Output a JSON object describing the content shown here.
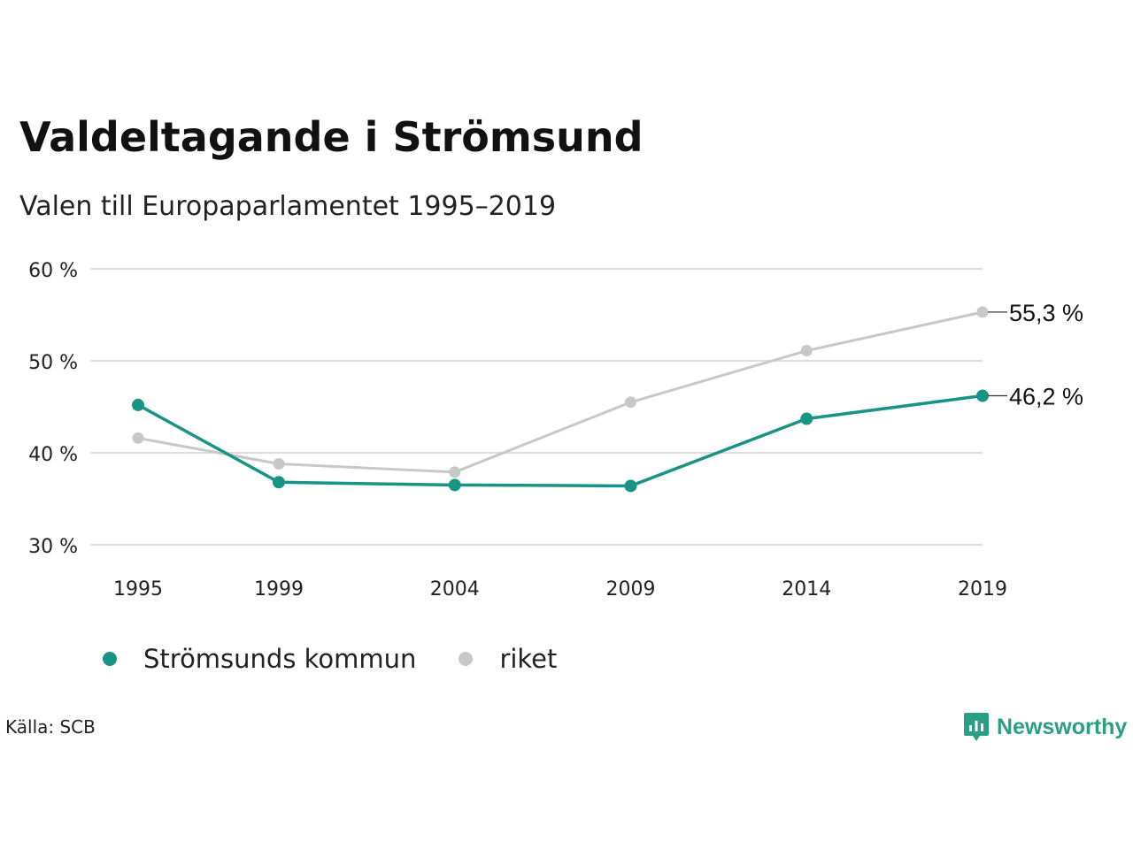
{
  "title": "Valdeltagande i Strömsund",
  "subtitle": "Valen till Europaparlamentet 1995–2019",
  "source": "Källa: SCB",
  "brand": "Newsworthy",
  "colors": {
    "accent": "#179483",
    "secondary": "#c8c8c8",
    "grid": "#dddddd",
    "brand": "#2a9f86"
  },
  "chart_data": {
    "type": "line",
    "categories": [
      "1995",
      "1999",
      "2004",
      "2009",
      "2014",
      "2019"
    ],
    "x": [
      1995,
      1999,
      2004,
      2009,
      2014,
      2019
    ],
    "yticks": [
      30,
      40,
      50,
      60
    ],
    "ytick_labels": [
      "30 %",
      "40 %",
      "50 %",
      "60 %"
    ],
    "ylim": [
      30,
      60
    ],
    "grid": true,
    "legend": "bottom-left",
    "series": [
      {
        "name": "Strömsunds kommun",
        "color": "#179483",
        "values": [
          45.2,
          36.8,
          36.5,
          36.4,
          43.7,
          46.2
        ],
        "end_label": "46,2 %"
      },
      {
        "name": "riket",
        "color": "#c8c8c8",
        "values": [
          41.6,
          38.8,
          37.9,
          45.5,
          51.1,
          55.3
        ],
        "end_label": "55,3 %"
      }
    ]
  }
}
